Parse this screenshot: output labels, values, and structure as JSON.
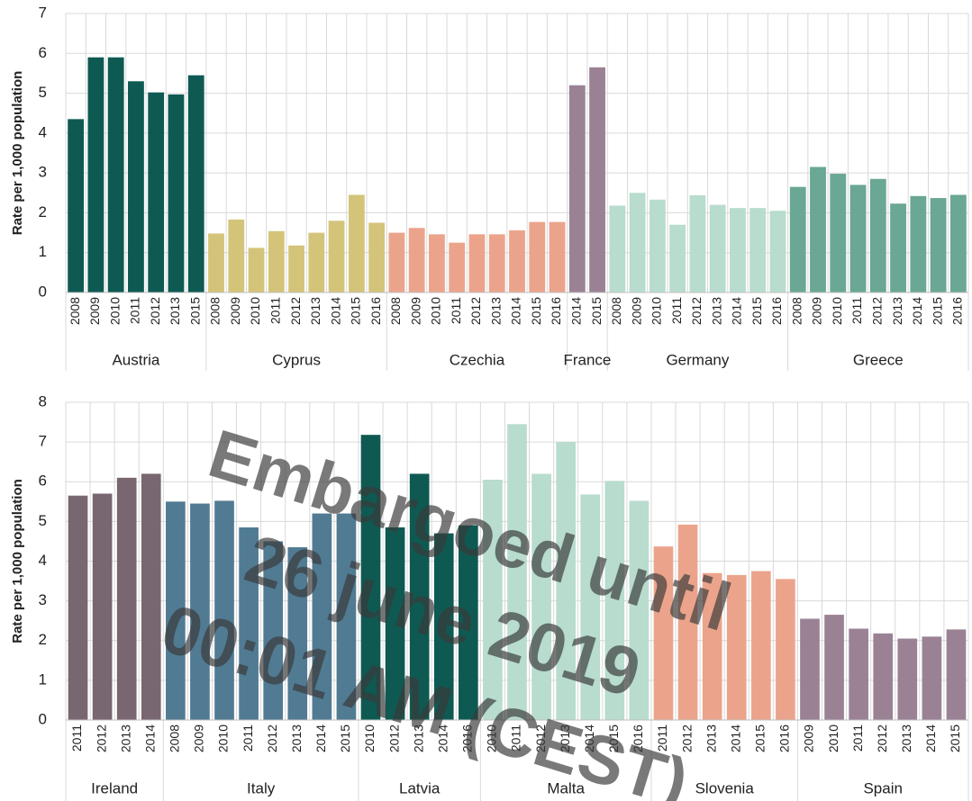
{
  "chart_data": [
    {
      "type": "bar",
      "y_label": "Rate per 1,000 population",
      "ylim": [
        0,
        7
      ],
      "yticks": [
        0,
        1,
        2,
        3,
        4,
        5,
        6,
        7
      ],
      "grid": true,
      "groups": [
        {
          "name": "Austria",
          "color": "#0e5a53",
          "categories": [
            "2008",
            "2009",
            "2010",
            "2011",
            "2012",
            "2013",
            "2015"
          ],
          "values": [
            4.35,
            5.9,
            5.9,
            5.3,
            5.02,
            4.97,
            5.45
          ]
        },
        {
          "name": "Cyprus",
          "color": "#d4c47a",
          "categories": [
            "2008",
            "2009",
            "2010",
            "2011",
            "2012",
            "2013",
            "2014",
            "2015",
            "2016"
          ],
          "values": [
            1.48,
            1.83,
            1.12,
            1.54,
            1.18,
            1.5,
            1.8,
            2.45,
            1.75
          ]
        },
        {
          "name": "Czechia",
          "color": "#eba48b",
          "categories": [
            "2008",
            "2009",
            "2010",
            "2011",
            "2012",
            "2013",
            "2014",
            "2015",
            "2016"
          ],
          "values": [
            1.5,
            1.62,
            1.46,
            1.25,
            1.46,
            1.46,
            1.56,
            1.77,
            1.77
          ]
        },
        {
          "name": "France",
          "color": "#9a8294",
          "categories": [
            "2014",
            "2015"
          ],
          "values": [
            5.2,
            5.65
          ]
        },
        {
          "name": "Germany",
          "color": "#b8dccd",
          "categories": [
            "2008",
            "2009",
            "2010",
            "2011",
            "2012",
            "2013",
            "2014",
            "2015",
            "2016"
          ],
          "values": [
            2.18,
            2.5,
            2.33,
            1.7,
            2.44,
            2.2,
            2.12,
            2.12,
            2.05
          ]
        },
        {
          "name": "Greece",
          "color": "#6aa795",
          "categories": [
            "2008",
            "2009",
            "2010",
            "2011",
            "2012",
            "2013",
            "2014",
            "2015",
            "2016"
          ],
          "values": [
            2.65,
            3.15,
            2.98,
            2.7,
            2.85,
            2.23,
            2.42,
            2.37,
            2.45
          ]
        }
      ]
    },
    {
      "type": "bar",
      "y_label": "Rate per 1,000 population",
      "ylim": [
        0,
        8
      ],
      "yticks": [
        0,
        1,
        2,
        3,
        4,
        5,
        6,
        7,
        8
      ],
      "grid": true,
      "groups": [
        {
          "name": "Ireland",
          "color": "#786670",
          "categories": [
            "2011",
            "2012",
            "2013",
            "2014"
          ],
          "values": [
            5.65,
            5.7,
            6.1,
            6.2
          ]
        },
        {
          "name": "Italy",
          "color": "#517b93",
          "categories": [
            "2008",
            "2009",
            "2010",
            "2011",
            "2012",
            "2013",
            "2014",
            "2015"
          ],
          "values": [
            5.5,
            5.45,
            5.52,
            4.85,
            4.5,
            4.35,
            5.2,
            5.2
          ]
        },
        {
          "name": "Latvia",
          "color": "#0e5a53",
          "categories": [
            "2010",
            "2012",
            "2013",
            "2014",
            "2016"
          ],
          "values": [
            7.18,
            4.85,
            6.2,
            4.7,
            4.9
          ]
        },
        {
          "name": "Malta",
          "color": "#b8dccd",
          "categories": [
            "2010",
            "2011",
            "2012",
            "2013",
            "2014",
            "2015",
            "2016"
          ],
          "values": [
            6.05,
            7.45,
            6.2,
            7.0,
            5.68,
            6.02,
            5.52
          ]
        },
        {
          "name": "Slovenia",
          "color": "#eba48b",
          "categories": [
            "2011",
            "2012",
            "2013",
            "2014",
            "2015",
            "2016"
          ],
          "values": [
            4.37,
            4.92,
            3.7,
            3.65,
            3.75,
            3.55
          ]
        },
        {
          "name": "Spain",
          "color": "#9a8294",
          "categories": [
            "2009",
            "2010",
            "2011",
            "2012",
            "2013",
            "2014",
            "2015"
          ],
          "values": [
            2.55,
            2.65,
            2.3,
            2.18,
            2.05,
            2.1,
            2.28
          ]
        }
      ]
    }
  ],
  "watermark": [
    "Embargoed until",
    "26 june 2019",
    "00:01 AM (CEST)"
  ]
}
